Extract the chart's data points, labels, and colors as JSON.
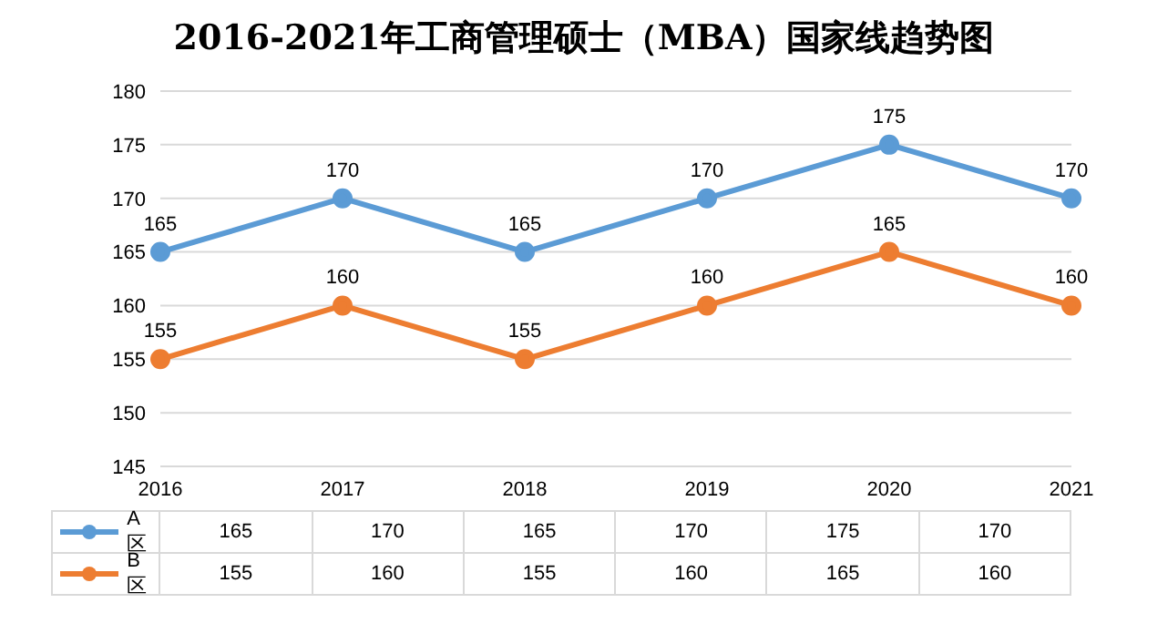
{
  "chart_data": {
    "type": "line",
    "title": "2016-2021年工商管理硕士（MBA）国家线趋势图",
    "categories": [
      "2016",
      "2017",
      "2018",
      "2019",
      "2020",
      "2021"
    ],
    "series": [
      {
        "name": "A区",
        "color": "#5b9bd5",
        "values": [
          165,
          170,
          165,
          170,
          175,
          170
        ],
        "value_labels": [
          "165",
          "170",
          "165",
          "170",
          "175",
          "170"
        ]
      },
      {
        "name": "B区",
        "color": "#ed7d31",
        "values": [
          155,
          160,
          155,
          160,
          165,
          160
        ],
        "value_labels": [
          "155",
          "160",
          "155",
          "160",
          "165",
          "160"
        ]
      }
    ],
    "ylim": [
      145,
      180
    ],
    "yticks": [
      145,
      150,
      155,
      160,
      165,
      170,
      175,
      180
    ],
    "grid": "y",
    "legend": "bottom",
    "marker": "circle",
    "line_style": "solid"
  }
}
